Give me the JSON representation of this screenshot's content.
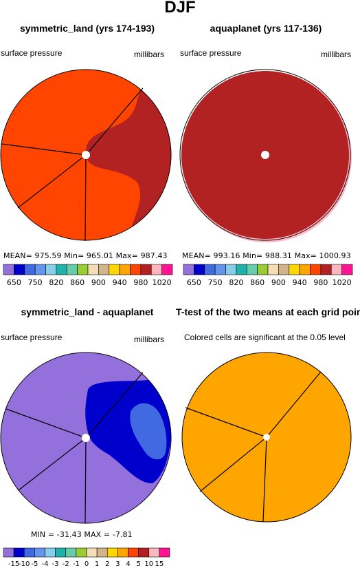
{
  "main_title": "DJF",
  "panels": [
    {
      "title": "symmetric_land (yrs 174-193)",
      "left_label": "surface pressure",
      "right_label": "millibars",
      "stats": "MEAN= 975.59   Min= 965.01   Max= 987.43"
    },
    {
      "title": "aquaplanet (yrs 117-136)",
      "left_label": "surface pressure",
      "right_label": "millibars",
      "stats": "MEAN= 993.16   Min= 988.31   Max= 1000.93"
    },
    {
      "title": "symmetric_land - aquaplanet",
      "left_label": "surface pressure",
      "right_label": "millibars",
      "stats": "MIN = -31.43  MAX =  -7.81"
    },
    {
      "title": "T-test of the two means at each grid point",
      "left_label": "Colored cells are significant at the 0.05 level",
      "right_label": "",
      "stats": ""
    }
  ],
  "colorbar_top": {
    "colors": [
      "#9370db",
      "#0000cd",
      "#4169e1",
      "#6495ed",
      "#87ceeb",
      "#20b2aa",
      "#66cdaa",
      "#9acd32",
      "#f5deb3",
      "#d2b48c",
      "#ffd700",
      "#ffa500",
      "#ff4500",
      "#b22222",
      "#ffb6c1",
      "#ff1493"
    ],
    "labels": [
      "650",
      "750",
      "820",
      "860",
      "900",
      "940",
      "980",
      "1020"
    ]
  },
  "colorbar_bottom": {
    "colors": [
      "#9370db",
      "#0000cd",
      "#4169e1",
      "#6495ed",
      "#87ceeb",
      "#20b2aa",
      "#66cdaa",
      "#9acd32",
      "#f5deb3",
      "#d2b48c",
      "#ffd700",
      "#ffa500",
      "#ff4500",
      "#b22222",
      "#ffb6c1",
      "#ff1493"
    ],
    "labels": [
      "-15",
      "-10",
      "-5",
      "-4",
      "-3",
      "-2",
      "-1",
      "0",
      "1",
      "2",
      "3",
      "4",
      "5",
      "10",
      "15"
    ]
  },
  "field_colors": {
    "land_low": "#ff4500",
    "land_high": "#b22222",
    "aqua": "#b22222",
    "aqua_rim": "#ffb6c1",
    "diff_weak": "#9370db",
    "diff_mid": "#0000cd",
    "diff_strong": "#4169e1",
    "ttest": "#ffa500"
  },
  "chart_data": [
    {
      "type": "heatmap",
      "title": "symmetric_land (yrs 174-193)",
      "variable": "surface pressure",
      "units": "millibars",
      "mean": 975.59,
      "min": 965.01,
      "max": 987.43,
      "contour_levels": [
        650,
        700,
        750,
        800,
        820,
        840,
        860,
        880,
        900,
        920,
        940,
        960,
        980,
        1000,
        1020
      ]
    },
    {
      "type": "heatmap",
      "title": "aquaplanet (yrs 117-136)",
      "variable": "surface pressure",
      "units": "millibars",
      "mean": 993.16,
      "min": 988.31,
      "max": 1000.93,
      "contour_levels": [
        650,
        700,
        750,
        800,
        820,
        840,
        860,
        880,
        900,
        920,
        940,
        960,
        980,
        1000,
        1020
      ]
    },
    {
      "type": "heatmap",
      "title": "symmetric_land - aquaplanet",
      "variable": "surface pressure",
      "units": "millibars",
      "min": -31.43,
      "max": -7.81,
      "contour_levels": [
        -15,
        -10,
        -5,
        -4,
        -3,
        -2,
        -1,
        0,
        1,
        2,
        3,
        4,
        5,
        10,
        15
      ]
    },
    {
      "type": "heatmap",
      "title": "T-test of the two means at each grid point",
      "note": "Colored cells are significant at the 0.05 level"
    }
  ]
}
